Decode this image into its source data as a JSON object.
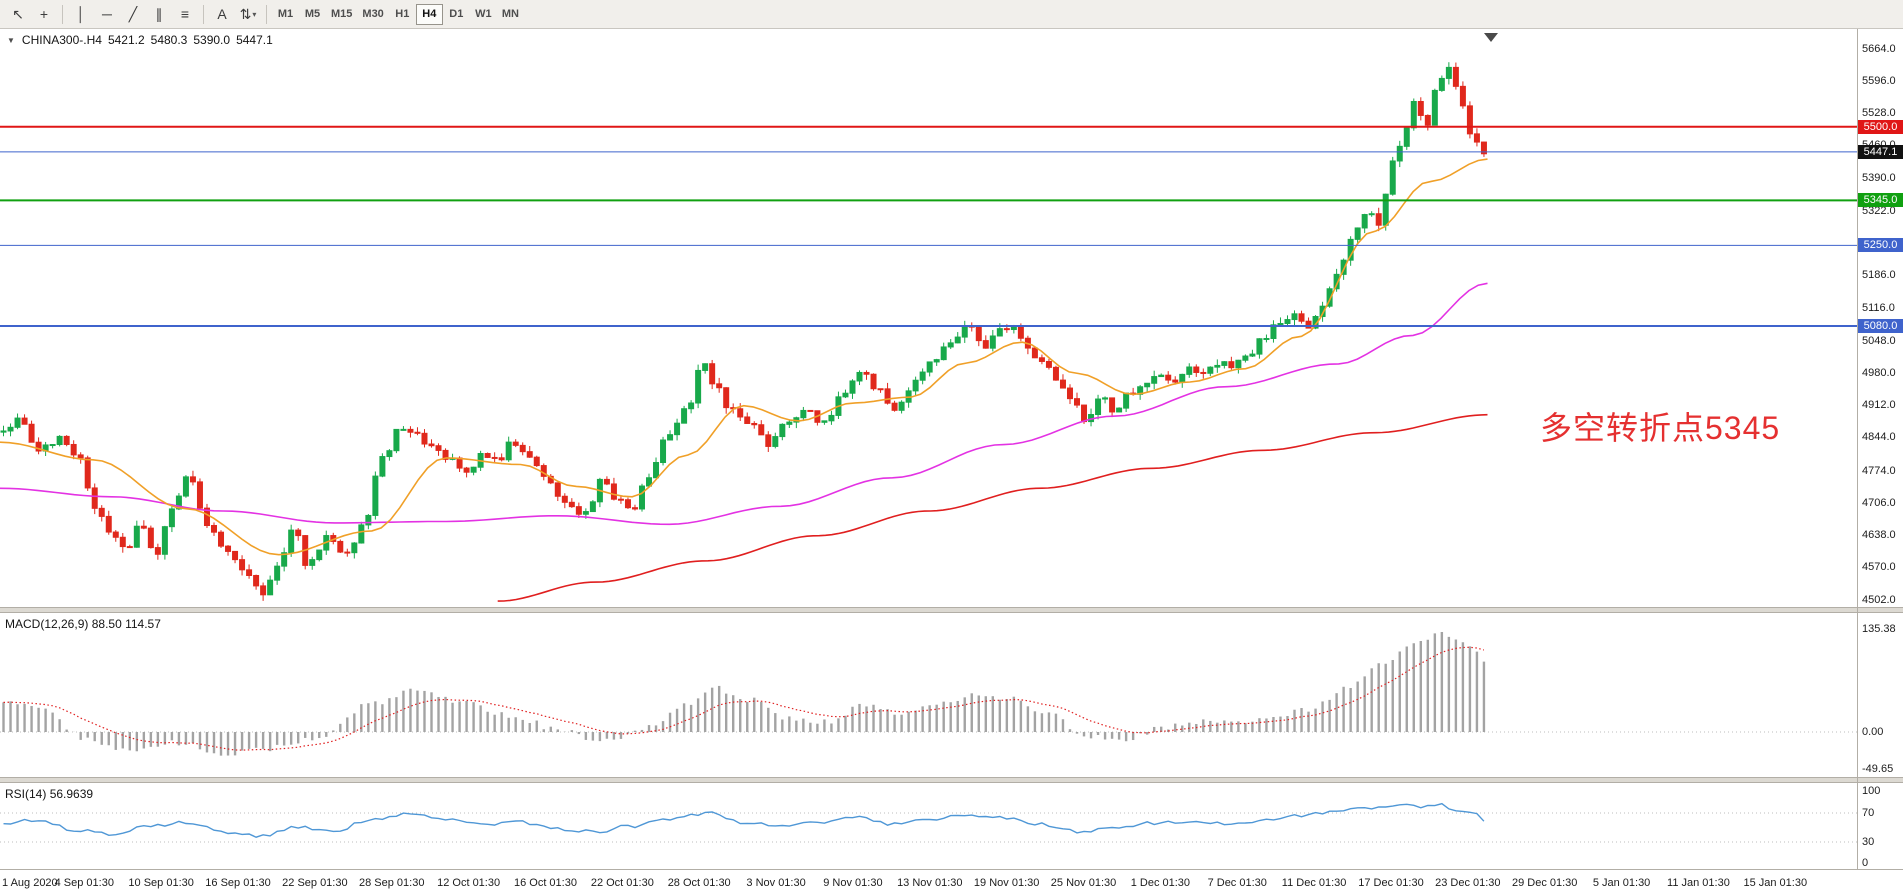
{
  "toolbar": {
    "tools": [
      {
        "name": "pointer-tool",
        "glyph": "↖"
      },
      {
        "name": "crosshair-tool",
        "glyph": "+"
      },
      {
        "separator": true
      },
      {
        "name": "vertical-line-tool",
        "glyph": "│"
      },
      {
        "name": "horizontal-line-tool",
        "glyph": "─"
      },
      {
        "name": "trendline-tool",
        "glyph": "╱"
      },
      {
        "name": "channel-tool",
        "glyph": "∥"
      },
      {
        "name": "fibonacci-tool",
        "glyph": "≡"
      },
      {
        "separator": true
      },
      {
        "name": "text-tool",
        "glyph": "A"
      },
      {
        "name": "arrows-tool",
        "glyph": "⇅",
        "caret": true
      },
      {
        "separator": true
      }
    ],
    "timeframes": [
      {
        "label": "M1"
      },
      {
        "label": "M5"
      },
      {
        "label": "M15"
      },
      {
        "label": "M30"
      },
      {
        "label": "H1"
      },
      {
        "label": "H4",
        "active": true
      },
      {
        "label": "D1"
      },
      {
        "label": "W1"
      },
      {
        "label": "MN"
      }
    ]
  },
  "chart": {
    "header": {
      "marker_glyph": "▼",
      "symbol": "CHINA300-.H4",
      "open": "5421.2",
      "high": "5480.3",
      "low": "5390.0",
      "close": "5447.1"
    },
    "annotation": {
      "text": "多空转折点5345"
    },
    "price_axis": {
      "labels": [
        "5664.0",
        "5596.0",
        "5528.0",
        "5460.0",
        "5390.0",
        "5322.0",
        "5254.0",
        "5186.0",
        "5116.0",
        "5048.0",
        "4980.0",
        "4912.0",
        "4844.0",
        "4774.0",
        "4706.0",
        "4638.0",
        "4570.0",
        "4502.0"
      ]
    },
    "hlines": [
      {
        "label": "5500.0",
        "price": 5500.0,
        "color_key": "hline_red",
        "width": 2
      },
      {
        "label": "5447.1",
        "price": 5447.1,
        "color_key": "hline_blue",
        "width": 1,
        "tag_color_key": "tag_black"
      },
      {
        "label": "5345.0",
        "price": 5345.0,
        "color_key": "hline_green",
        "width": 2
      },
      {
        "label": "5250.0",
        "price": 5250.0,
        "color_key": "hline_blue",
        "width": 1
      },
      {
        "label": "5080.0",
        "price": 5080.0,
        "color_key": "hline_blue",
        "width": 2
      }
    ],
    "current_price": "5447.1"
  },
  "macd_panel": {
    "title": "MACD(12,26,9)",
    "values": "88.50 114.57",
    "axis": [
      {
        "label": "135.38",
        "value": 135.38
      },
      {
        "label": "0.00",
        "value": 0
      },
      {
        "label": "-49.65",
        "value": -49.65
      }
    ]
  },
  "rsi_panel": {
    "title": "RSI(14)",
    "value": "56.9639",
    "axis": [
      {
        "label": "100",
        "value": 100
      },
      {
        "label": "70",
        "value": 70
      },
      {
        "label": "30",
        "value": 30
      },
      {
        "label": "0",
        "value": 0
      }
    ]
  },
  "time_axis": {
    "labels": [
      "1 Aug 2020",
      "4 Sep 01:30",
      "10 Sep 01:30",
      "16 Sep 01:30",
      "22 Sep 01:30",
      "28 Sep 01:30",
      "12 Oct 01:30",
      "16 Oct 01:30",
      "22 Oct 01:30",
      "28 Oct 01:30",
      "3 Nov 01:30",
      "9 Nov 01:30",
      "13 Nov 01:30",
      "19 Nov 01:30",
      "25 Nov 01:30",
      "1 Dec 01:30",
      "7 Dec 01:30",
      "11 Dec 01:30",
      "17 Dec 01:30",
      "23 Dec 01:30",
      "29 Dec 01:30",
      "5 Jan 01:30",
      "11 Jan 01:30",
      "15 Jan 01:30"
    ]
  },
  "colors": {
    "up": "#18a94b",
    "down": "#e0281c",
    "ma_fast": "#f0a028",
    "ma_mid": "#e332e3",
    "ma_slow": "#e01f1f",
    "macd_hist": "#a3a3a3",
    "macd_signal": "#e02020",
    "rsi": "#4f97d6",
    "hline_red": "#e01616",
    "hline_green": "#10a010",
    "hline_blue": "#3f63cc",
    "tag_black": "#111111",
    "annotation": "#e53030",
    "level_dotted": "#bdbdbd"
  },
  "chart_data": {
    "type": "candlestick",
    "symbol": "CHINA300-",
    "timeframe": "H4",
    "ohlc_current": {
      "open": 5421.2,
      "high": 5480.3,
      "low": 5390.0,
      "close": 5447.1
    },
    "ylim": [
      4502,
      5664
    ],
    "x_first_label": "1 Aug 2020",
    "x_last_label": "15 Jan 01:30",
    "price_path_anchors": [
      [
        0.0,
        4855
      ],
      [
        0.01,
        4880
      ],
      [
        0.022,
        4820
      ],
      [
        0.032,
        4845
      ],
      [
        0.042,
        4800
      ],
      [
        0.052,
        4700
      ],
      [
        0.06,
        4640
      ],
      [
        0.068,
        4605
      ],
      [
        0.076,
        4665
      ],
      [
        0.084,
        4600
      ],
      [
        0.092,
        4690
      ],
      [
        0.102,
        4765
      ],
      [
        0.112,
        4660
      ],
      [
        0.122,
        4610
      ],
      [
        0.132,
        4565
      ],
      [
        0.142,
        4515
      ],
      [
        0.15,
        4575
      ],
      [
        0.158,
        4655
      ],
      [
        0.166,
        4575
      ],
      [
        0.176,
        4635
      ],
      [
        0.186,
        4600
      ],
      [
        0.196,
        4665
      ],
      [
        0.206,
        4800
      ],
      [
        0.214,
        4855
      ],
      [
        0.222,
        4860
      ],
      [
        0.232,
        4820
      ],
      [
        0.242,
        4798
      ],
      [
        0.252,
        4768
      ],
      [
        0.26,
        4815
      ],
      [
        0.268,
        4795
      ],
      [
        0.276,
        4835
      ],
      [
        0.286,
        4800
      ],
      [
        0.296,
        4745
      ],
      [
        0.306,
        4700
      ],
      [
        0.316,
        4682
      ],
      [
        0.324,
        4755
      ],
      [
        0.332,
        4718
      ],
      [
        0.34,
        4688
      ],
      [
        0.35,
        4768
      ],
      [
        0.36,
        4858
      ],
      [
        0.37,
        4902
      ],
      [
        0.378,
        5000
      ],
      [
        0.386,
        4945
      ],
      [
        0.394,
        4900
      ],
      [
        0.404,
        4875
      ],
      [
        0.414,
        4830
      ],
      [
        0.424,
        4872
      ],
      [
        0.434,
        4900
      ],
      [
        0.444,
        4878
      ],
      [
        0.454,
        4938
      ],
      [
        0.464,
        4982
      ],
      [
        0.474,
        4940
      ],
      [
        0.482,
        4902
      ],
      [
        0.492,
        4958
      ],
      [
        0.502,
        5012
      ],
      [
        0.512,
        5048
      ],
      [
        0.522,
        5078
      ],
      [
        0.53,
        5040
      ],
      [
        0.538,
        5068
      ],
      [
        0.546,
        5080
      ],
      [
        0.554,
        5032
      ],
      [
        0.562,
        5000
      ],
      [
        0.57,
        4962
      ],
      [
        0.578,
        4930
      ],
      [
        0.584,
        4880
      ],
      [
        0.592,
        4932
      ],
      [
        0.6,
        4902
      ],
      [
        0.608,
        4940
      ],
      [
        0.616,
        4962
      ],
      [
        0.624,
        4980
      ],
      [
        0.632,
        4958
      ],
      [
        0.64,
        4992
      ],
      [
        0.648,
        4978
      ],
      [
        0.656,
        5002
      ],
      [
        0.664,
        4992
      ],
      [
        0.672,
        5022
      ],
      [
        0.68,
        5052
      ],
      [
        0.688,
        5082
      ],
      [
        0.696,
        5102
      ],
      [
        0.704,
        5082
      ],
      [
        0.712,
        5122
      ],
      [
        0.72,
        5185
      ],
      [
        0.728,
        5262
      ],
      [
        0.736,
        5322
      ],
      [
        0.742,
        5295
      ],
      [
        0.75,
        5420
      ],
      [
        0.756,
        5482
      ],
      [
        0.762,
        5558
      ],
      [
        0.768,
        5502
      ],
      [
        0.774,
        5582
      ],
      [
        0.78,
        5625
      ],
      [
        0.786,
        5565
      ],
      [
        0.792,
        5482
      ],
      [
        0.798,
        5448
      ]
    ],
    "ma_fast_anchors": [
      [
        0.0,
        4835
      ],
      [
        0.05,
        4798
      ],
      [
        0.1,
        4695
      ],
      [
        0.15,
        4598
      ],
      [
        0.2,
        4648
      ],
      [
        0.24,
        4802
      ],
      [
        0.28,
        4788
      ],
      [
        0.31,
        4742
      ],
      [
        0.34,
        4720
      ],
      [
        0.37,
        4808
      ],
      [
        0.4,
        4912
      ],
      [
        0.43,
        4880
      ],
      [
        0.46,
        4918
      ],
      [
        0.49,
        4930
      ],
      [
        0.52,
        5002
      ],
      [
        0.55,
        5046
      ],
      [
        0.58,
        4980
      ],
      [
        0.61,
        4936
      ],
      [
        0.64,
        4962
      ],
      [
        0.67,
        4990
      ],
      [
        0.7,
        5058
      ],
      [
        0.74,
        5280
      ],
      [
        0.77,
        5385
      ],
      [
        0.801,
        5432
      ]
    ],
    "ma_mid_anchors": [
      [
        0.0,
        4738
      ],
      [
        0.06,
        4720
      ],
      [
        0.12,
        4690
      ],
      [
        0.18,
        4665
      ],
      [
        0.24,
        4668
      ],
      [
        0.3,
        4680
      ],
      [
        0.36,
        4662
      ],
      [
        0.42,
        4700
      ],
      [
        0.48,
        4760
      ],
      [
        0.54,
        4830
      ],
      [
        0.6,
        4890
      ],
      [
        0.66,
        4952
      ],
      [
        0.72,
        5000
      ],
      [
        0.76,
        5060
      ],
      [
        0.801,
        5170
      ]
    ],
    "ma_slow_anchors": [
      [
        0.268,
        4500
      ],
      [
        0.32,
        4540
      ],
      [
        0.38,
        4585
      ],
      [
        0.44,
        4638
      ],
      [
        0.5,
        4690
      ],
      [
        0.56,
        4738
      ],
      [
        0.62,
        4780
      ],
      [
        0.68,
        4818
      ],
      [
        0.74,
        4855
      ],
      [
        0.801,
        4893
      ]
    ],
    "macd_anchors": [
      [
        0.0,
        42
      ],
      [
        0.02,
        36
      ],
      [
        0.045,
        -8
      ],
      [
        0.07,
        -26
      ],
      [
        0.095,
        -14
      ],
      [
        0.12,
        -30
      ],
      [
        0.145,
        -22
      ],
      [
        0.17,
        -8
      ],
      [
        0.2,
        38
      ],
      [
        0.225,
        55
      ],
      [
        0.25,
        38
      ],
      [
        0.275,
        22
      ],
      [
        0.3,
        4
      ],
      [
        0.325,
        -12
      ],
      [
        0.35,
        6
      ],
      [
        0.37,
        38
      ],
      [
        0.385,
        58
      ],
      [
        0.405,
        42
      ],
      [
        0.425,
        18
      ],
      [
        0.445,
        14
      ],
      [
        0.465,
        34
      ],
      [
        0.485,
        24
      ],
      [
        0.505,
        38
      ],
      [
        0.525,
        48
      ],
      [
        0.545,
        44
      ],
      [
        0.565,
        24
      ],
      [
        0.585,
        -6
      ],
      [
        0.605,
        -14
      ],
      [
        0.625,
        6
      ],
      [
        0.645,
        14
      ],
      [
        0.665,
        12
      ],
      [
        0.685,
        20
      ],
      [
        0.705,
        30
      ],
      [
        0.725,
        58
      ],
      [
        0.745,
        92
      ],
      [
        0.762,
        118
      ],
      [
        0.775,
        132
      ],
      [
        0.785,
        126
      ],
      [
        0.795,
        104
      ],
      [
        0.801,
        89
      ]
    ],
    "rsi_anchors": [
      [
        0.0,
        55
      ],
      [
        0.02,
        61
      ],
      [
        0.04,
        47
      ],
      [
        0.06,
        40
      ],
      [
        0.08,
        52
      ],
      [
        0.1,
        58
      ],
      [
        0.12,
        44
      ],
      [
        0.14,
        38
      ],
      [
        0.16,
        50
      ],
      [
        0.18,
        45
      ],
      [
        0.2,
        62
      ],
      [
        0.22,
        68
      ],
      [
        0.24,
        60
      ],
      [
        0.26,
        55
      ],
      [
        0.28,
        58
      ],
      [
        0.3,
        48
      ],
      [
        0.32,
        44
      ],
      [
        0.34,
        52
      ],
      [
        0.36,
        62
      ],
      [
        0.38,
        70
      ],
      [
        0.4,
        57
      ],
      [
        0.42,
        52
      ],
      [
        0.44,
        56
      ],
      [
        0.46,
        64
      ],
      [
        0.48,
        54
      ],
      [
        0.5,
        62
      ],
      [
        0.52,
        68
      ],
      [
        0.54,
        63
      ],
      [
        0.56,
        54
      ],
      [
        0.58,
        45
      ],
      [
        0.6,
        48
      ],
      [
        0.62,
        56
      ],
      [
        0.64,
        58
      ],
      [
        0.66,
        55
      ],
      [
        0.68,
        60
      ],
      [
        0.7,
        66
      ],
      [
        0.72,
        72
      ],
      [
        0.74,
        78
      ],
      [
        0.755,
        82
      ],
      [
        0.765,
        79
      ],
      [
        0.775,
        83
      ],
      [
        0.785,
        74
      ],
      [
        0.795,
        70
      ],
      [
        0.801,
        57
      ]
    ]
  }
}
